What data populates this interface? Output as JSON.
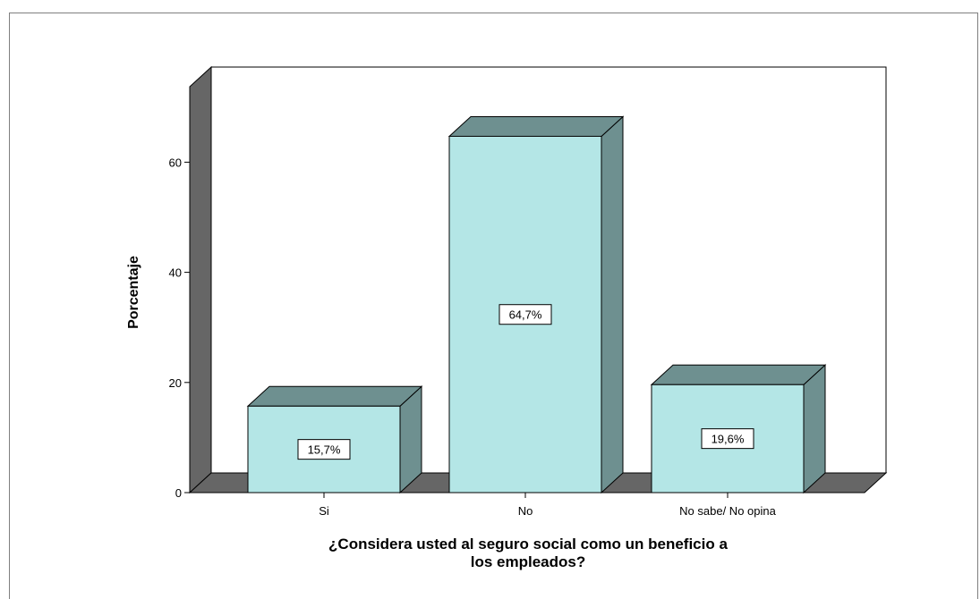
{
  "chart_data": {
    "type": "bar",
    "categories": [
      "Si",
      "No",
      "No sabe/ No opina"
    ],
    "values": [
      15.7,
      64.7,
      19.6
    ],
    "data_labels": [
      "15,7%",
      "64,7%",
      "19,6%"
    ],
    "xlabel_lines": [
      "¿Considera usted al seguro social como un beneficio a",
      "los empleados?"
    ],
    "ylabel": "Porcentaje",
    "ylim": [
      0,
      70
    ],
    "yticks": [
      0,
      20,
      40,
      60
    ],
    "grid": false,
    "style": "3d",
    "colors": {
      "bar_front": "#b4e6e6",
      "bar_top": "#6e9090",
      "bar_side": "#6e9090",
      "back_wall_left": "#666666",
      "floor": "#666666"
    }
  }
}
